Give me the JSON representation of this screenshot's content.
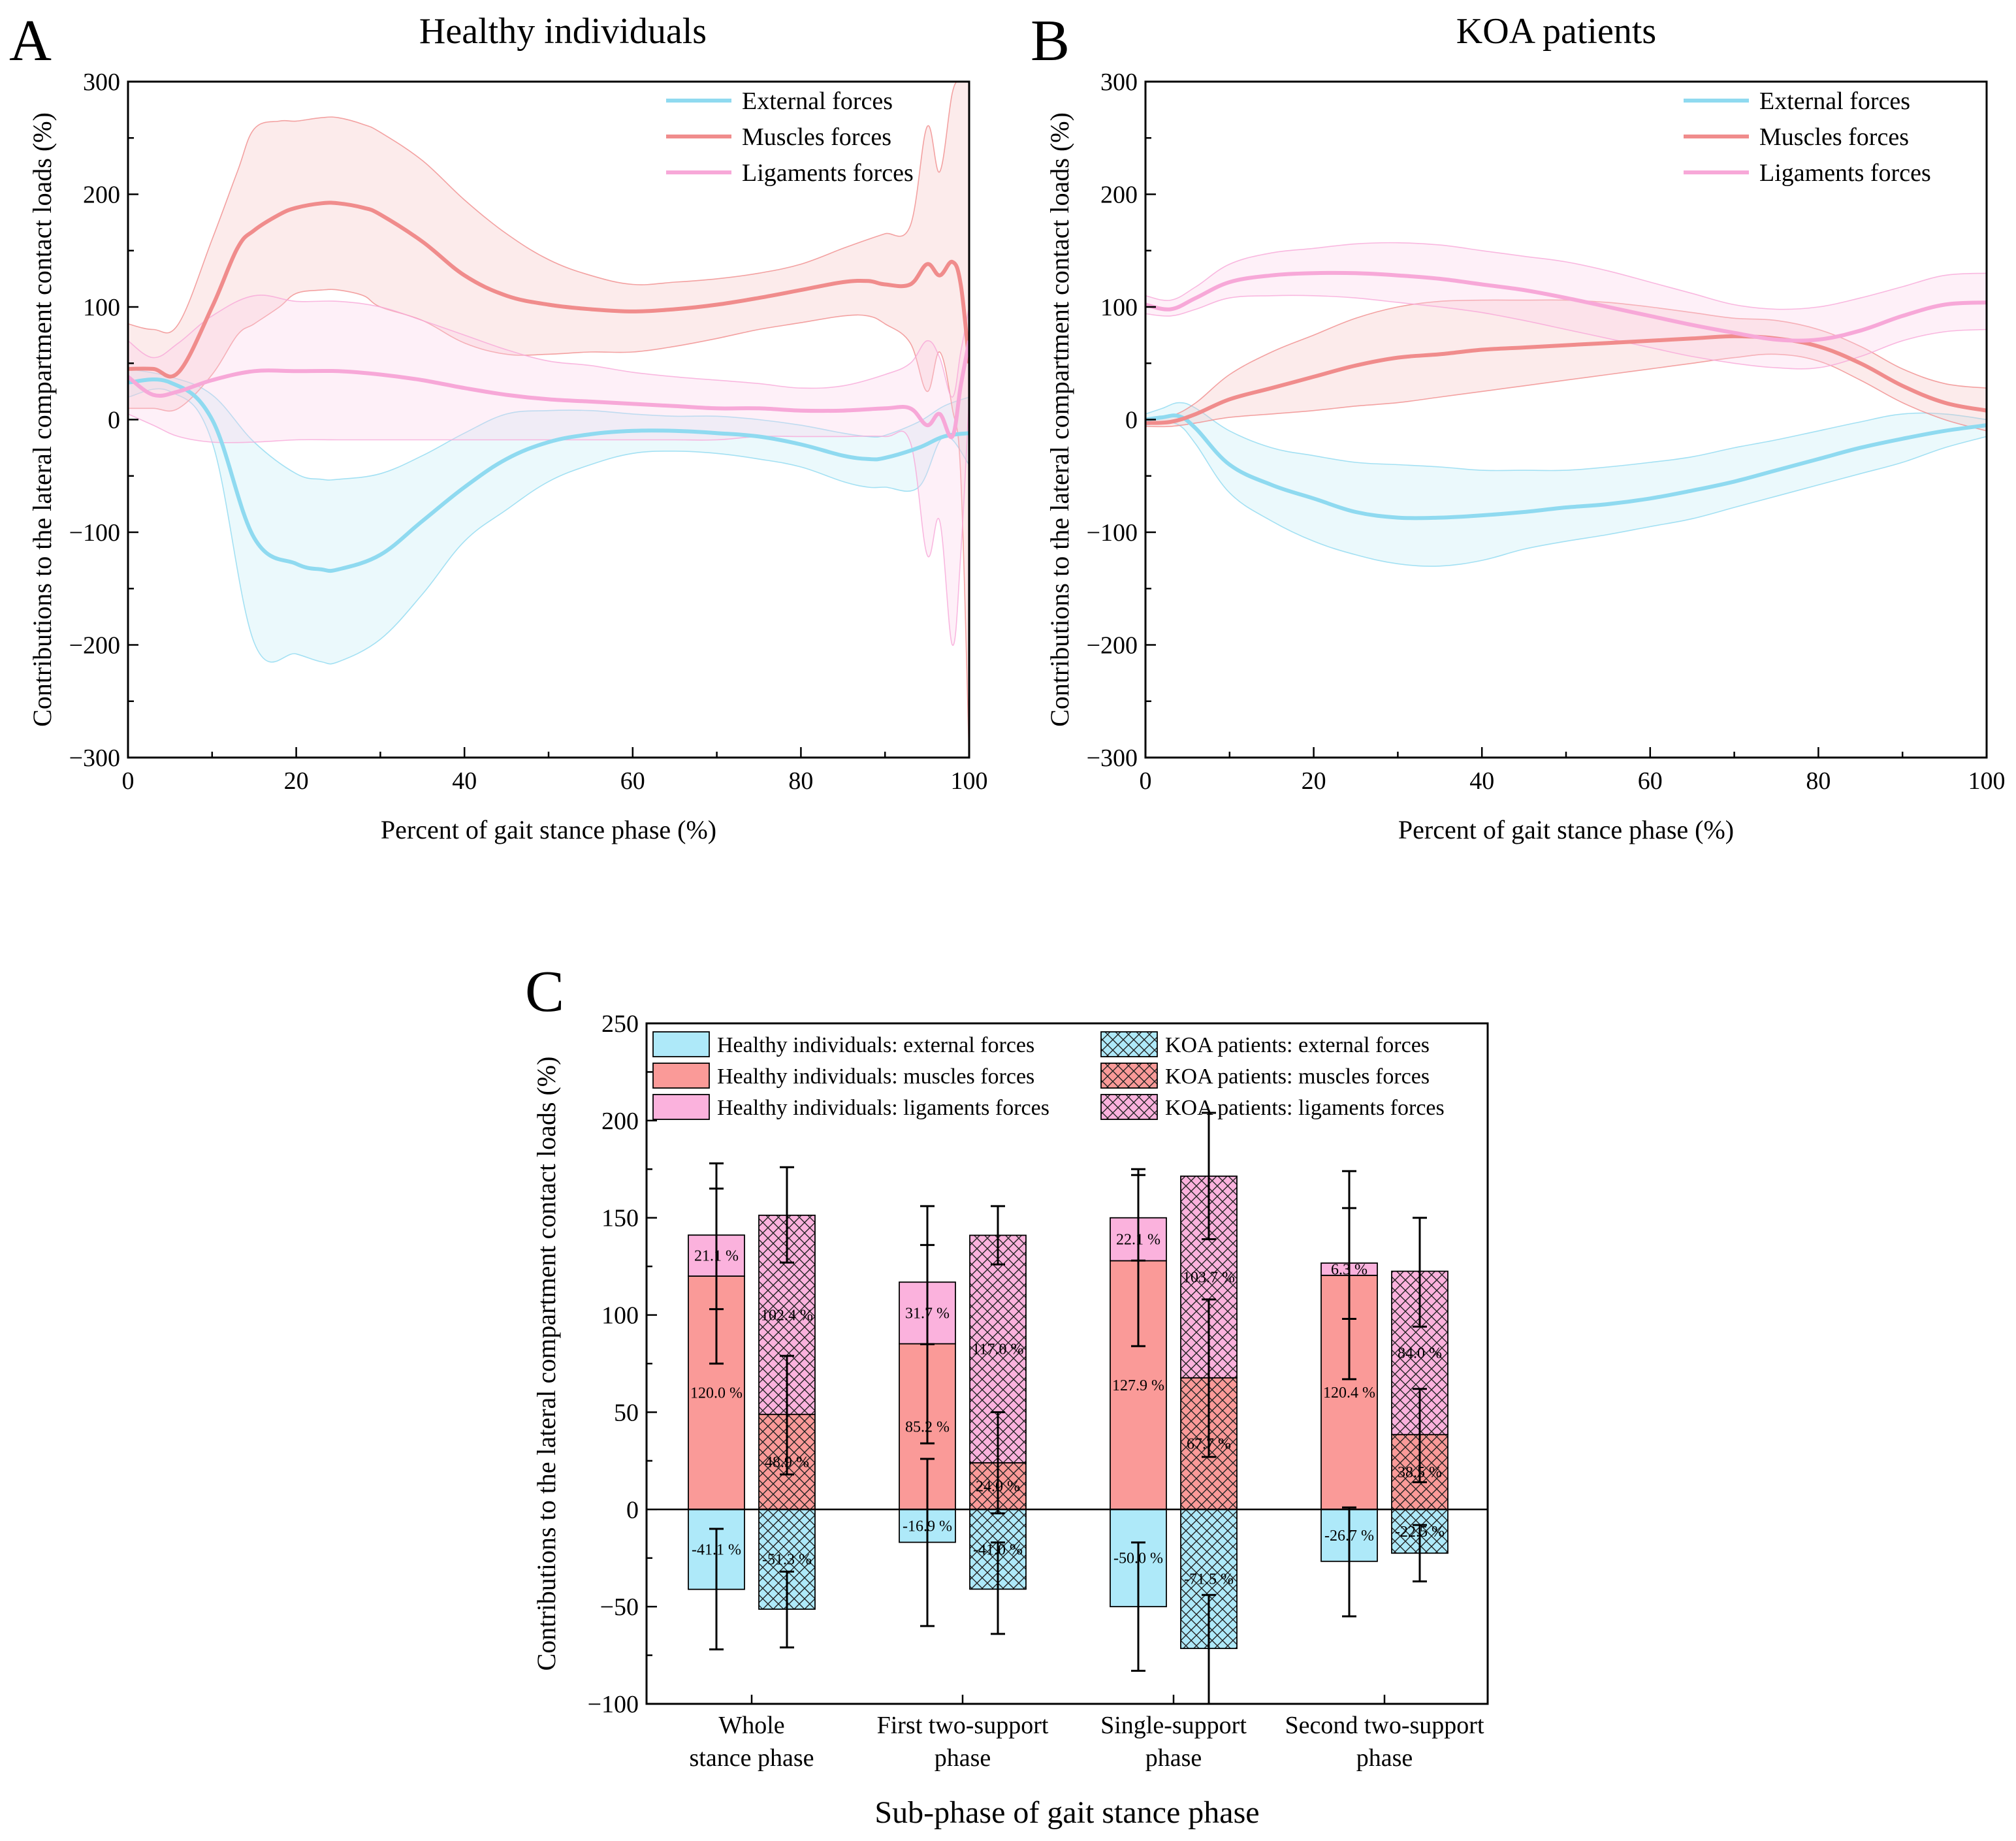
{
  "figure": {
    "panels": [
      {
        "letter": "A",
        "title": "Healthy individuals"
      },
      {
        "letter": "B",
        "title": "KOA patients"
      },
      {
        "letter": "C"
      }
    ]
  },
  "chart_data": [
    {
      "id": "A",
      "type": "line",
      "title": "Healthy individuals",
      "xlabel": "Percent of gait stance phase (%)",
      "ylabel": "Contributions to the lateral compartment contact loads (%)",
      "xlim": [
        0,
        100
      ],
      "ylim": [
        -300,
        300
      ],
      "xticks": [
        0,
        20,
        40,
        60,
        80,
        100
      ],
      "yticks": [
        -300,
        -200,
        -100,
        0,
        100,
        200,
        300
      ],
      "ytick_labels": [
        "−300",
        "−200",
        "−100",
        "0",
        "100",
        "200",
        "300"
      ],
      "legend_position": "top-right",
      "series": [
        {
          "name": "External forces",
          "color": "#8fdaf0",
          "x": [
            0,
            5,
            10,
            15,
            20,
            23,
            25,
            30,
            35,
            40,
            45,
            50,
            55,
            60,
            65,
            70,
            75,
            80,
            85,
            88,
            90,
            94,
            97,
            100
          ],
          "mean": [
            33,
            33,
            0,
            -105,
            -128,
            -133,
            -133,
            -120,
            -90,
            -60,
            -35,
            -20,
            -13,
            -10,
            -10,
            -12,
            -15,
            -22,
            -32,
            -35,
            -34,
            -25,
            -15,
            -12
          ],
          "upper": [
            45,
            38,
            22,
            -20,
            -48,
            -53,
            -53,
            -48,
            -32,
            -12,
            5,
            8,
            8,
            5,
            3,
            3,
            0,
            -5,
            -12,
            -15,
            -14,
            -2,
            12,
            20
          ],
          "lower": [
            20,
            25,
            -20,
            -198,
            -208,
            -215,
            -215,
            -195,
            -155,
            -108,
            -80,
            -55,
            -40,
            -30,
            -28,
            -30,
            -35,
            -42,
            -55,
            -60,
            -60,
            -60,
            -15,
            -40
          ]
        },
        {
          "name": "Muscles forces",
          "color": "#f08c8c",
          "x": [
            0,
            3,
            6,
            10,
            13,
            15,
            18,
            20,
            23,
            25,
            28,
            30,
            35,
            40,
            45,
            50,
            55,
            60,
            65,
            70,
            75,
            80,
            85,
            88,
            90,
            93,
            95,
            96.5,
            98,
            99,
            100
          ],
          "mean": [
            45,
            45,
            42,
            100,
            152,
            168,
            182,
            188,
            192,
            192,
            188,
            182,
            158,
            128,
            110,
            102,
            98,
            96,
            98,
            102,
            108,
            115,
            122,
            123,
            120,
            120,
            138,
            128,
            140,
            120,
            50
          ],
          "upper": [
            85,
            80,
            85,
            160,
            220,
            258,
            265,
            265,
            268,
            268,
            262,
            255,
            230,
            195,
            165,
            142,
            128,
            120,
            122,
            125,
            130,
            138,
            152,
            160,
            165,
            172,
            260,
            220,
            290,
            300,
            300
          ],
          "lower": [
            10,
            10,
            10,
            40,
            75,
            85,
            100,
            112,
            115,
            115,
            110,
            100,
            88,
            68,
            58,
            58,
            60,
            60,
            65,
            72,
            80,
            86,
            92,
            92,
            85,
            68,
            25,
            60,
            10,
            -50,
            -300
          ]
        },
        {
          "name": "Ligaments forces",
          "color": "#f7a8d8",
          "x": [
            0,
            3,
            6,
            10,
            15,
            20,
            25,
            30,
            35,
            40,
            45,
            50,
            55,
            60,
            65,
            70,
            75,
            80,
            85,
            90,
            93,
            95,
            96.5,
            98,
            99,
            100
          ],
          "mean": [
            38,
            22,
            25,
            35,
            43,
            43,
            43,
            40,
            35,
            28,
            22,
            18,
            16,
            14,
            12,
            10,
            10,
            8,
            8,
            10,
            10,
            -5,
            5,
            -15,
            30,
            70
          ],
          "upper": [
            70,
            55,
            68,
            92,
            110,
            105,
            105,
            100,
            88,
            75,
            62,
            52,
            48,
            42,
            38,
            35,
            32,
            28,
            30,
            40,
            50,
            70,
            55,
            20,
            60,
            100
          ],
          "lower": [
            5,
            -5,
            -15,
            -20,
            -20,
            -18,
            -18,
            -18,
            -18,
            -18,
            -18,
            -18,
            -18,
            -18,
            -18,
            -18,
            -15,
            -15,
            -15,
            -15,
            -20,
            -120,
            -90,
            -200,
            -120,
            20
          ]
        }
      ]
    },
    {
      "id": "B",
      "type": "line",
      "title": "KOA patients",
      "xlabel": "Percent of gait stance phase (%)",
      "ylabel": "Contributions to the lateral compartment contact loads (%)",
      "xlim": [
        0,
        100
      ],
      "ylim": [
        -300,
        300
      ],
      "xticks": [
        0,
        20,
        40,
        60,
        80,
        100
      ],
      "yticks": [
        -300,
        -200,
        -100,
        0,
        100,
        200,
        300
      ],
      "ytick_labels": [
        "−300",
        "−200",
        "−100",
        "0",
        "100",
        "200",
        "300"
      ],
      "legend_position": "top-right",
      "series": [
        {
          "name": "External forces",
          "color": "#8fdaf0",
          "x": [
            0,
            2,
            4,
            6,
            10,
            15,
            20,
            25,
            30,
            35,
            40,
            45,
            50,
            55,
            60,
            65,
            70,
            75,
            80,
            85,
            90,
            95,
            100
          ],
          "mean": [
            0,
            2,
            3,
            -8,
            -40,
            -58,
            -70,
            -82,
            -87,
            -87,
            -85,
            -82,
            -78,
            -75,
            -70,
            -63,
            -55,
            -45,
            -35,
            -25,
            -17,
            -10,
            -5
          ],
          "upper": [
            5,
            10,
            15,
            10,
            -10,
            -25,
            -32,
            -38,
            -40,
            -42,
            -45,
            -45,
            -45,
            -42,
            -38,
            -33,
            -25,
            -18,
            -10,
            -2,
            5,
            5,
            0
          ],
          "lower": [
            -5,
            -3,
            -5,
            -22,
            -65,
            -90,
            -108,
            -120,
            -128,
            -130,
            -125,
            -115,
            -108,
            -102,
            -95,
            -88,
            -78,
            -68,
            -58,
            -48,
            -38,
            -25,
            -15
          ]
        },
        {
          "name": "Muscles forces",
          "color": "#f08c8c",
          "x": [
            0,
            3,
            6,
            10,
            15,
            20,
            25,
            30,
            35,
            40,
            45,
            50,
            55,
            60,
            65,
            70,
            75,
            80,
            85,
            90,
            95,
            100
          ],
          "mean": [
            -3,
            -2,
            5,
            18,
            28,
            38,
            48,
            55,
            58,
            62,
            64,
            66,
            68,
            70,
            72,
            74,
            72,
            65,
            50,
            30,
            15,
            8
          ],
          "upper": [
            0,
            3,
            15,
            40,
            60,
            75,
            90,
            100,
            105,
            106,
            106,
            106,
            104,
            100,
            95,
            90,
            88,
            80,
            65,
            45,
            32,
            28
          ],
          "lower": [
            -6,
            -6,
            -3,
            2,
            5,
            8,
            12,
            15,
            20,
            25,
            30,
            35,
            40,
            45,
            50,
            55,
            58,
            52,
            35,
            15,
            0,
            -10
          ]
        },
        {
          "name": "Ligaments forces",
          "color": "#f7a8d8",
          "x": [
            0,
            3,
            6,
            10,
            15,
            20,
            25,
            30,
            35,
            40,
            45,
            50,
            55,
            60,
            65,
            70,
            75,
            80,
            85,
            90,
            95,
            100
          ],
          "mean": [
            102,
            98,
            108,
            122,
            128,
            130,
            130,
            128,
            125,
            120,
            115,
            108,
            100,
            92,
            84,
            77,
            71,
            71,
            79,
            92,
            102,
            104
          ],
          "upper": [
            110,
            106,
            118,
            138,
            148,
            152,
            156,
            157,
            155,
            150,
            145,
            140,
            132,
            122,
            112,
            102,
            98,
            100,
            108,
            118,
            128,
            130
          ],
          "lower": [
            94,
            92,
            98,
            108,
            110,
            110,
            108,
            104,
            100,
            95,
            88,
            80,
            72,
            64,
            56,
            50,
            46,
            46,
            56,
            70,
            78,
            80
          ]
        }
      ]
    },
    {
      "id": "C",
      "type": "bar",
      "stacked": true,
      "xlabel": "Sub-phase of gait stance phase",
      "ylabel": "Contributions to the lateral compartment contact loads (%)",
      "ylim": [
        -100,
        250
      ],
      "yticks": [
        -100,
        -50,
        0,
        50,
        100,
        150,
        200,
        250
      ],
      "ytick_labels": [
        "−100",
        "−50",
        "0",
        "50",
        "100",
        "150",
        "200",
        "250"
      ],
      "categories": [
        [
          "Whole",
          "stance phase"
        ],
        [
          "First two-support",
          "phase"
        ],
        [
          "Single-support",
          "phase"
        ],
        [
          "Second two-support",
          "phase"
        ]
      ],
      "legend": {
        "position": "top",
        "items": [
          {
            "label": "Healthy individuals: external forces",
            "color": "#aee9f9",
            "hatch": false
          },
          {
            "label": "Healthy individuals: muscles forces",
            "color": "#fa9a98",
            "hatch": false
          },
          {
            "label": "Healthy individuals: ligaments forces",
            "color": "#fbb2dd",
            "hatch": false
          },
          {
            "label": "KOA patients: external forces",
            "color": "#aee9f9",
            "hatch": true
          },
          {
            "label": "KOA patients: muscles forces",
            "color": "#fa9a98",
            "hatch": true
          },
          {
            "label": "KOA patients: ligaments forces",
            "color": "#fbb2dd",
            "hatch": true
          }
        ]
      },
      "groups": [
        {
          "name": "Healthy individuals",
          "hatch": false,
          "external": [
            -41.1,
            -16.9,
            -50.0,
            -26.7
          ],
          "muscles": [
            120.0,
            85.2,
            127.9,
            120.4
          ],
          "ligaments": [
            21.1,
            31.7,
            22.1,
            6.3
          ],
          "external_labels": [
            "-41.1 %",
            "-16.9 %",
            "-50.0 %",
            "-26.7 %"
          ],
          "muscles_labels": [
            "120.0 %",
            "85.2 %",
            "127.9 %",
            "120.4 %"
          ],
          "ligaments_labels": [
            "21.1 %",
            "31.7 %",
            "22.1 %",
            "6.3 %"
          ],
          "external_err": [
            [
              -72,
              -10
            ],
            [
              -60,
              26
            ],
            [
              -83,
              -17
            ],
            [
              -55,
              1
            ]
          ],
          "muscles_err": [
            [
              75,
              165
            ],
            [
              34,
              136
            ],
            [
              84,
              172
            ],
            [
              67,
              155
            ]
          ],
          "ligaments_err": [
            [
              103,
              178
            ],
            [
              85,
              156
            ],
            [
              128,
              175
            ],
            [
              98,
              174
            ]
          ]
        },
        {
          "name": "KOA patients",
          "hatch": true,
          "external": [
            -51.3,
            -41.0,
            -71.5,
            -22.5
          ],
          "muscles": [
            48.9,
            24.0,
            67.7,
            38.5
          ],
          "ligaments": [
            102.4,
            117.0,
            103.7,
            84.0
          ],
          "external_labels": [
            "-51.3 %",
            "-41.0 %",
            "-71.5 %",
            "-22.5 %"
          ],
          "muscles_labels": [
            "48.9 %",
            "24.0 %",
            "67.7 %",
            "38.5 %"
          ],
          "ligaments_labels": [
            "102.4 %",
            "117.0 %",
            "103.7 %",
            "84.0 %"
          ],
          "external_err": [
            [
              -71,
              -32
            ],
            [
              -64,
              -17
            ],
            [
              -100,
              -44
            ],
            [
              -37,
              -8
            ]
          ],
          "muscles_err": [
            [
              18,
              79
            ],
            [
              -2,
              50
            ],
            [
              27,
              108
            ],
            [
              14,
              62
            ]
          ],
          "ligaments_err": [
            [
              127,
              176
            ],
            [
              126,
              156
            ],
            [
              139,
              204
            ],
            [
              94,
              150
            ]
          ]
        }
      ]
    }
  ]
}
